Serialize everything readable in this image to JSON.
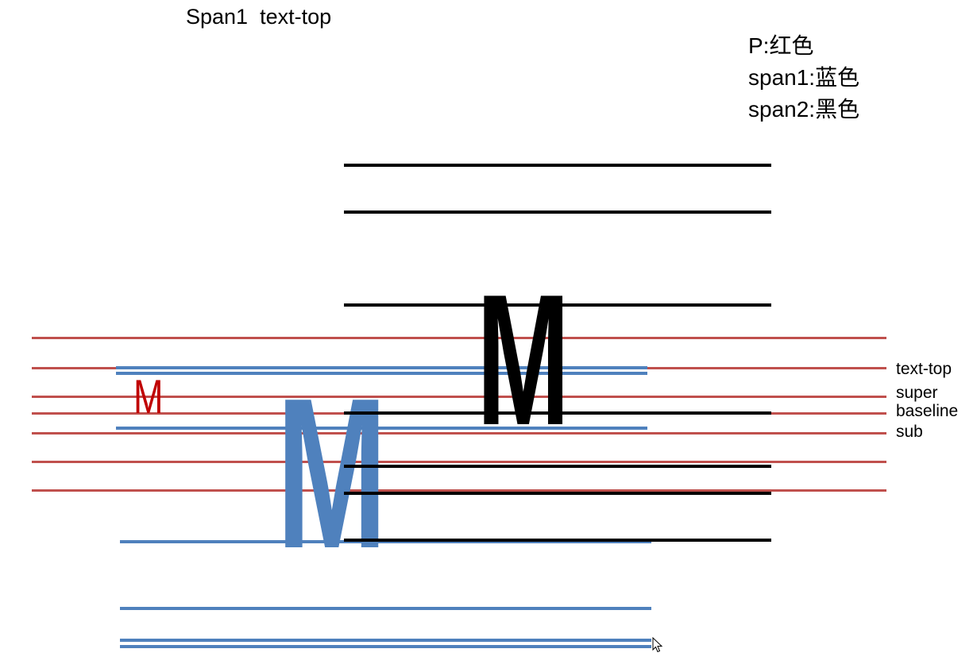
{
  "title": "Span1  text-top",
  "legend": [
    "P:红色",
    "span1:蓝色",
    "span2:黑色"
  ],
  "glyphs": {
    "p": "M",
    "span1": "M",
    "span2": "M"
  },
  "labels": {
    "text_top": "text-top",
    "super": "super",
    "baseline": "baseline",
    "sub": "sub"
  },
  "icons": {
    "cursor": "mouse-pointer-icon"
  },
  "colors": {
    "p": "#c00000",
    "p_lines": "#c0504d",
    "span1": "#4f81bd",
    "span2": "#000000"
  }
}
